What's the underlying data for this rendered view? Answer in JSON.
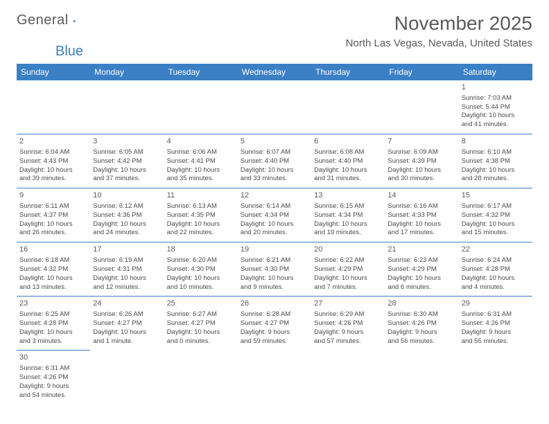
{
  "logo": {
    "word1": "General",
    "word2": "Blue"
  },
  "title": "November 2025",
  "location": "North Las Vegas, Nevada, United States",
  "colors": {
    "header_bg": "#3b7fc4",
    "header_text": "#ffffff",
    "border": "#3b7fc4",
    "text": "#4a4a4a",
    "title_text": "#5a5a5a"
  },
  "weekdays": [
    "Sunday",
    "Monday",
    "Tuesday",
    "Wednesday",
    "Thursday",
    "Friday",
    "Saturday"
  ],
  "weeks": [
    [
      null,
      null,
      null,
      null,
      null,
      null,
      {
        "n": "1",
        "lines": [
          "Sunrise: 7:03 AM",
          "Sunset: 5:44 PM",
          "Daylight: 10 hours",
          "and 41 minutes."
        ]
      }
    ],
    [
      {
        "n": "2",
        "lines": [
          "Sunrise: 6:04 AM",
          "Sunset: 4:43 PM",
          "Daylight: 10 hours",
          "and 39 minutes."
        ]
      },
      {
        "n": "3",
        "lines": [
          "Sunrise: 6:05 AM",
          "Sunset: 4:42 PM",
          "Daylight: 10 hours",
          "and 37 minutes."
        ]
      },
      {
        "n": "4",
        "lines": [
          "Sunrise: 6:06 AM",
          "Sunset: 4:41 PM",
          "Daylight: 10 hours",
          "and 35 minutes."
        ]
      },
      {
        "n": "5",
        "lines": [
          "Sunrise: 6:07 AM",
          "Sunset: 4:40 PM",
          "Daylight: 10 hours",
          "and 33 minutes."
        ]
      },
      {
        "n": "6",
        "lines": [
          "Sunrise: 6:08 AM",
          "Sunset: 4:40 PM",
          "Daylight: 10 hours",
          "and 31 minutes."
        ]
      },
      {
        "n": "7",
        "lines": [
          "Sunrise: 6:09 AM",
          "Sunset: 4:39 PM",
          "Daylight: 10 hours",
          "and 30 minutes."
        ]
      },
      {
        "n": "8",
        "lines": [
          "Sunrise: 6:10 AM",
          "Sunset: 4:38 PM",
          "Daylight: 10 hours",
          "and 28 minutes."
        ]
      }
    ],
    [
      {
        "n": "9",
        "lines": [
          "Sunrise: 6:11 AM",
          "Sunset: 4:37 PM",
          "Daylight: 10 hours",
          "and 26 minutes."
        ]
      },
      {
        "n": "10",
        "lines": [
          "Sunrise: 6:12 AM",
          "Sunset: 4:36 PM",
          "Daylight: 10 hours",
          "and 24 minutes."
        ]
      },
      {
        "n": "11",
        "lines": [
          "Sunrise: 6:13 AM",
          "Sunset: 4:35 PM",
          "Daylight: 10 hours",
          "and 22 minutes."
        ]
      },
      {
        "n": "12",
        "lines": [
          "Sunrise: 6:14 AM",
          "Sunset: 4:34 PM",
          "Daylight: 10 hours",
          "and 20 minutes."
        ]
      },
      {
        "n": "13",
        "lines": [
          "Sunrise: 6:15 AM",
          "Sunset: 4:34 PM",
          "Daylight: 10 hours",
          "and 19 minutes."
        ]
      },
      {
        "n": "14",
        "lines": [
          "Sunrise: 6:16 AM",
          "Sunset: 4:33 PM",
          "Daylight: 10 hours",
          "and 17 minutes."
        ]
      },
      {
        "n": "15",
        "lines": [
          "Sunrise: 6:17 AM",
          "Sunset: 4:32 PM",
          "Daylight: 10 hours",
          "and 15 minutes."
        ]
      }
    ],
    [
      {
        "n": "16",
        "lines": [
          "Sunrise: 6:18 AM",
          "Sunset: 4:32 PM",
          "Daylight: 10 hours",
          "and 13 minutes."
        ]
      },
      {
        "n": "17",
        "lines": [
          "Sunrise: 6:19 AM",
          "Sunset: 4:31 PM",
          "Daylight: 10 hours",
          "and 12 minutes."
        ]
      },
      {
        "n": "18",
        "lines": [
          "Sunrise: 6:20 AM",
          "Sunset: 4:30 PM",
          "Daylight: 10 hours",
          "and 10 minutes."
        ]
      },
      {
        "n": "19",
        "lines": [
          "Sunrise: 6:21 AM",
          "Sunset: 4:30 PM",
          "Daylight: 10 hours",
          "and 9 minutes."
        ]
      },
      {
        "n": "20",
        "lines": [
          "Sunrise: 6:22 AM",
          "Sunset: 4:29 PM",
          "Daylight: 10 hours",
          "and 7 minutes."
        ]
      },
      {
        "n": "21",
        "lines": [
          "Sunrise: 6:23 AM",
          "Sunset: 4:29 PM",
          "Daylight: 10 hours",
          "and 6 minutes."
        ]
      },
      {
        "n": "22",
        "lines": [
          "Sunrise: 6:24 AM",
          "Sunset: 4:28 PM",
          "Daylight: 10 hours",
          "and 4 minutes."
        ]
      }
    ],
    [
      {
        "n": "23",
        "lines": [
          "Sunrise: 6:25 AM",
          "Sunset: 4:28 PM",
          "Daylight: 10 hours",
          "and 3 minutes."
        ]
      },
      {
        "n": "24",
        "lines": [
          "Sunrise: 6:26 AM",
          "Sunset: 4:27 PM",
          "Daylight: 10 hours",
          "and 1 minute."
        ]
      },
      {
        "n": "25",
        "lines": [
          "Sunrise: 6:27 AM",
          "Sunset: 4:27 PM",
          "Daylight: 10 hours",
          "and 0 minutes."
        ]
      },
      {
        "n": "26",
        "lines": [
          "Sunrise: 6:28 AM",
          "Sunset: 4:27 PM",
          "Daylight: 9 hours",
          "and 59 minutes."
        ]
      },
      {
        "n": "27",
        "lines": [
          "Sunrise: 6:29 AM",
          "Sunset: 4:26 PM",
          "Daylight: 9 hours",
          "and 57 minutes."
        ]
      },
      {
        "n": "28",
        "lines": [
          "Sunrise: 6:30 AM",
          "Sunset: 4:26 PM",
          "Daylight: 9 hours",
          "and 56 minutes."
        ]
      },
      {
        "n": "29",
        "lines": [
          "Sunrise: 6:31 AM",
          "Sunset: 4:26 PM",
          "Daylight: 9 hours",
          "and 55 minutes."
        ]
      }
    ],
    [
      {
        "n": "30",
        "lines": [
          "Sunrise: 6:31 AM",
          "Sunset: 4:26 PM",
          "Daylight: 9 hours",
          "and 54 minutes."
        ]
      },
      null,
      null,
      null,
      null,
      null,
      null
    ]
  ]
}
